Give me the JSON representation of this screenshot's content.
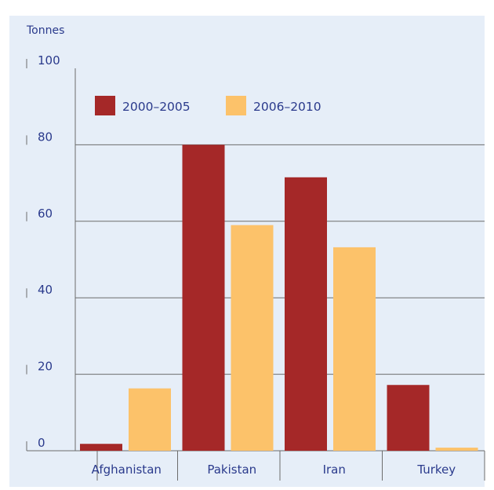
{
  "chart_data": {
    "type": "bar",
    "unit_label": "Tonnes",
    "categories": [
      "Afghanistan",
      "Pakistan",
      "Iran",
      "Turkey"
    ],
    "series": [
      {
        "name": "2000–2005",
        "values": [
          1.8,
          80,
          71.5,
          17.2
        ]
      },
      {
        "name": "2006–2010",
        "values": [
          16.3,
          59,
          53.2,
          0.8
        ]
      }
    ],
    "ylim": [
      0,
      100
    ],
    "yticks": [
      0,
      20,
      40,
      60,
      80,
      100
    ],
    "grid": true,
    "legend_position": "top-left",
    "colors": {
      "panel": "#e6eef8",
      "series": [
        "#a52828",
        "#fcc26a"
      ]
    }
  }
}
